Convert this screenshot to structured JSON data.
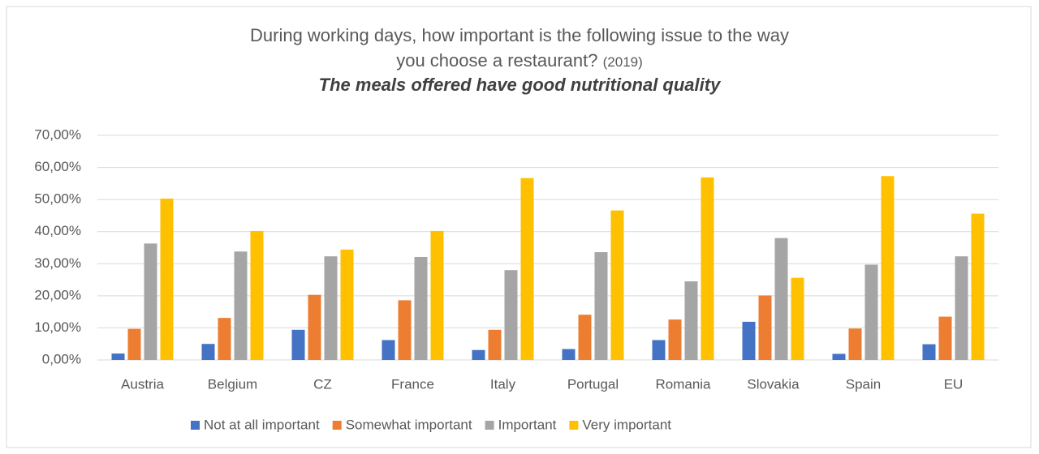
{
  "chart_data": {
    "type": "bar",
    "title": "During working days, how important is the following issue to the way you choose a restaurant?",
    "title_note": "(2019)",
    "subtitle": "The meals offered have good nutritional quality",
    "categories": [
      "Austria",
      "Belgium",
      "CZ",
      "France",
      "Italy",
      "Portugal",
      "Romania",
      "Slovakia",
      "Spain",
      "EU"
    ],
    "series": [
      {
        "name": "Not at all important",
        "color": "#4472c4",
        "values": [
          2.0,
          5.0,
          9.4,
          6.2,
          3.1,
          3.4,
          6.2,
          11.9,
          1.9,
          4.9
        ]
      },
      {
        "name": "Somewhat important",
        "color": "#ed7d31",
        "values": [
          9.7,
          13.1,
          20.3,
          18.6,
          9.4,
          14.1,
          12.6,
          20.1,
          9.8,
          13.5
        ]
      },
      {
        "name": "Important",
        "color": "#a5a5a5",
        "values": [
          36.3,
          33.8,
          32.3,
          32.1,
          28.0,
          33.6,
          24.5,
          38.0,
          29.7,
          32.3
        ]
      },
      {
        "name": "Very important",
        "color": "#ffc000",
        "values": [
          50.3,
          40.2,
          34.4,
          40.2,
          56.7,
          46.6,
          56.9,
          25.6,
          57.3,
          45.6
        ]
      }
    ],
    "ylim": [
      0,
      70
    ],
    "yticks": [
      {
        "value": 0,
        "label": "0,00%"
      },
      {
        "value": 10,
        "label": "10,00%"
      },
      {
        "value": 20,
        "label": "20,00%"
      },
      {
        "value": 30,
        "label": "30,00%"
      },
      {
        "value": 40,
        "label": "40,00%"
      },
      {
        "value": 50,
        "label": "50,00%"
      },
      {
        "value": 60,
        "label": "60,00%"
      },
      {
        "value": 70,
        "label": "70,00%"
      }
    ],
    "grid": true,
    "legend": "bottom"
  }
}
